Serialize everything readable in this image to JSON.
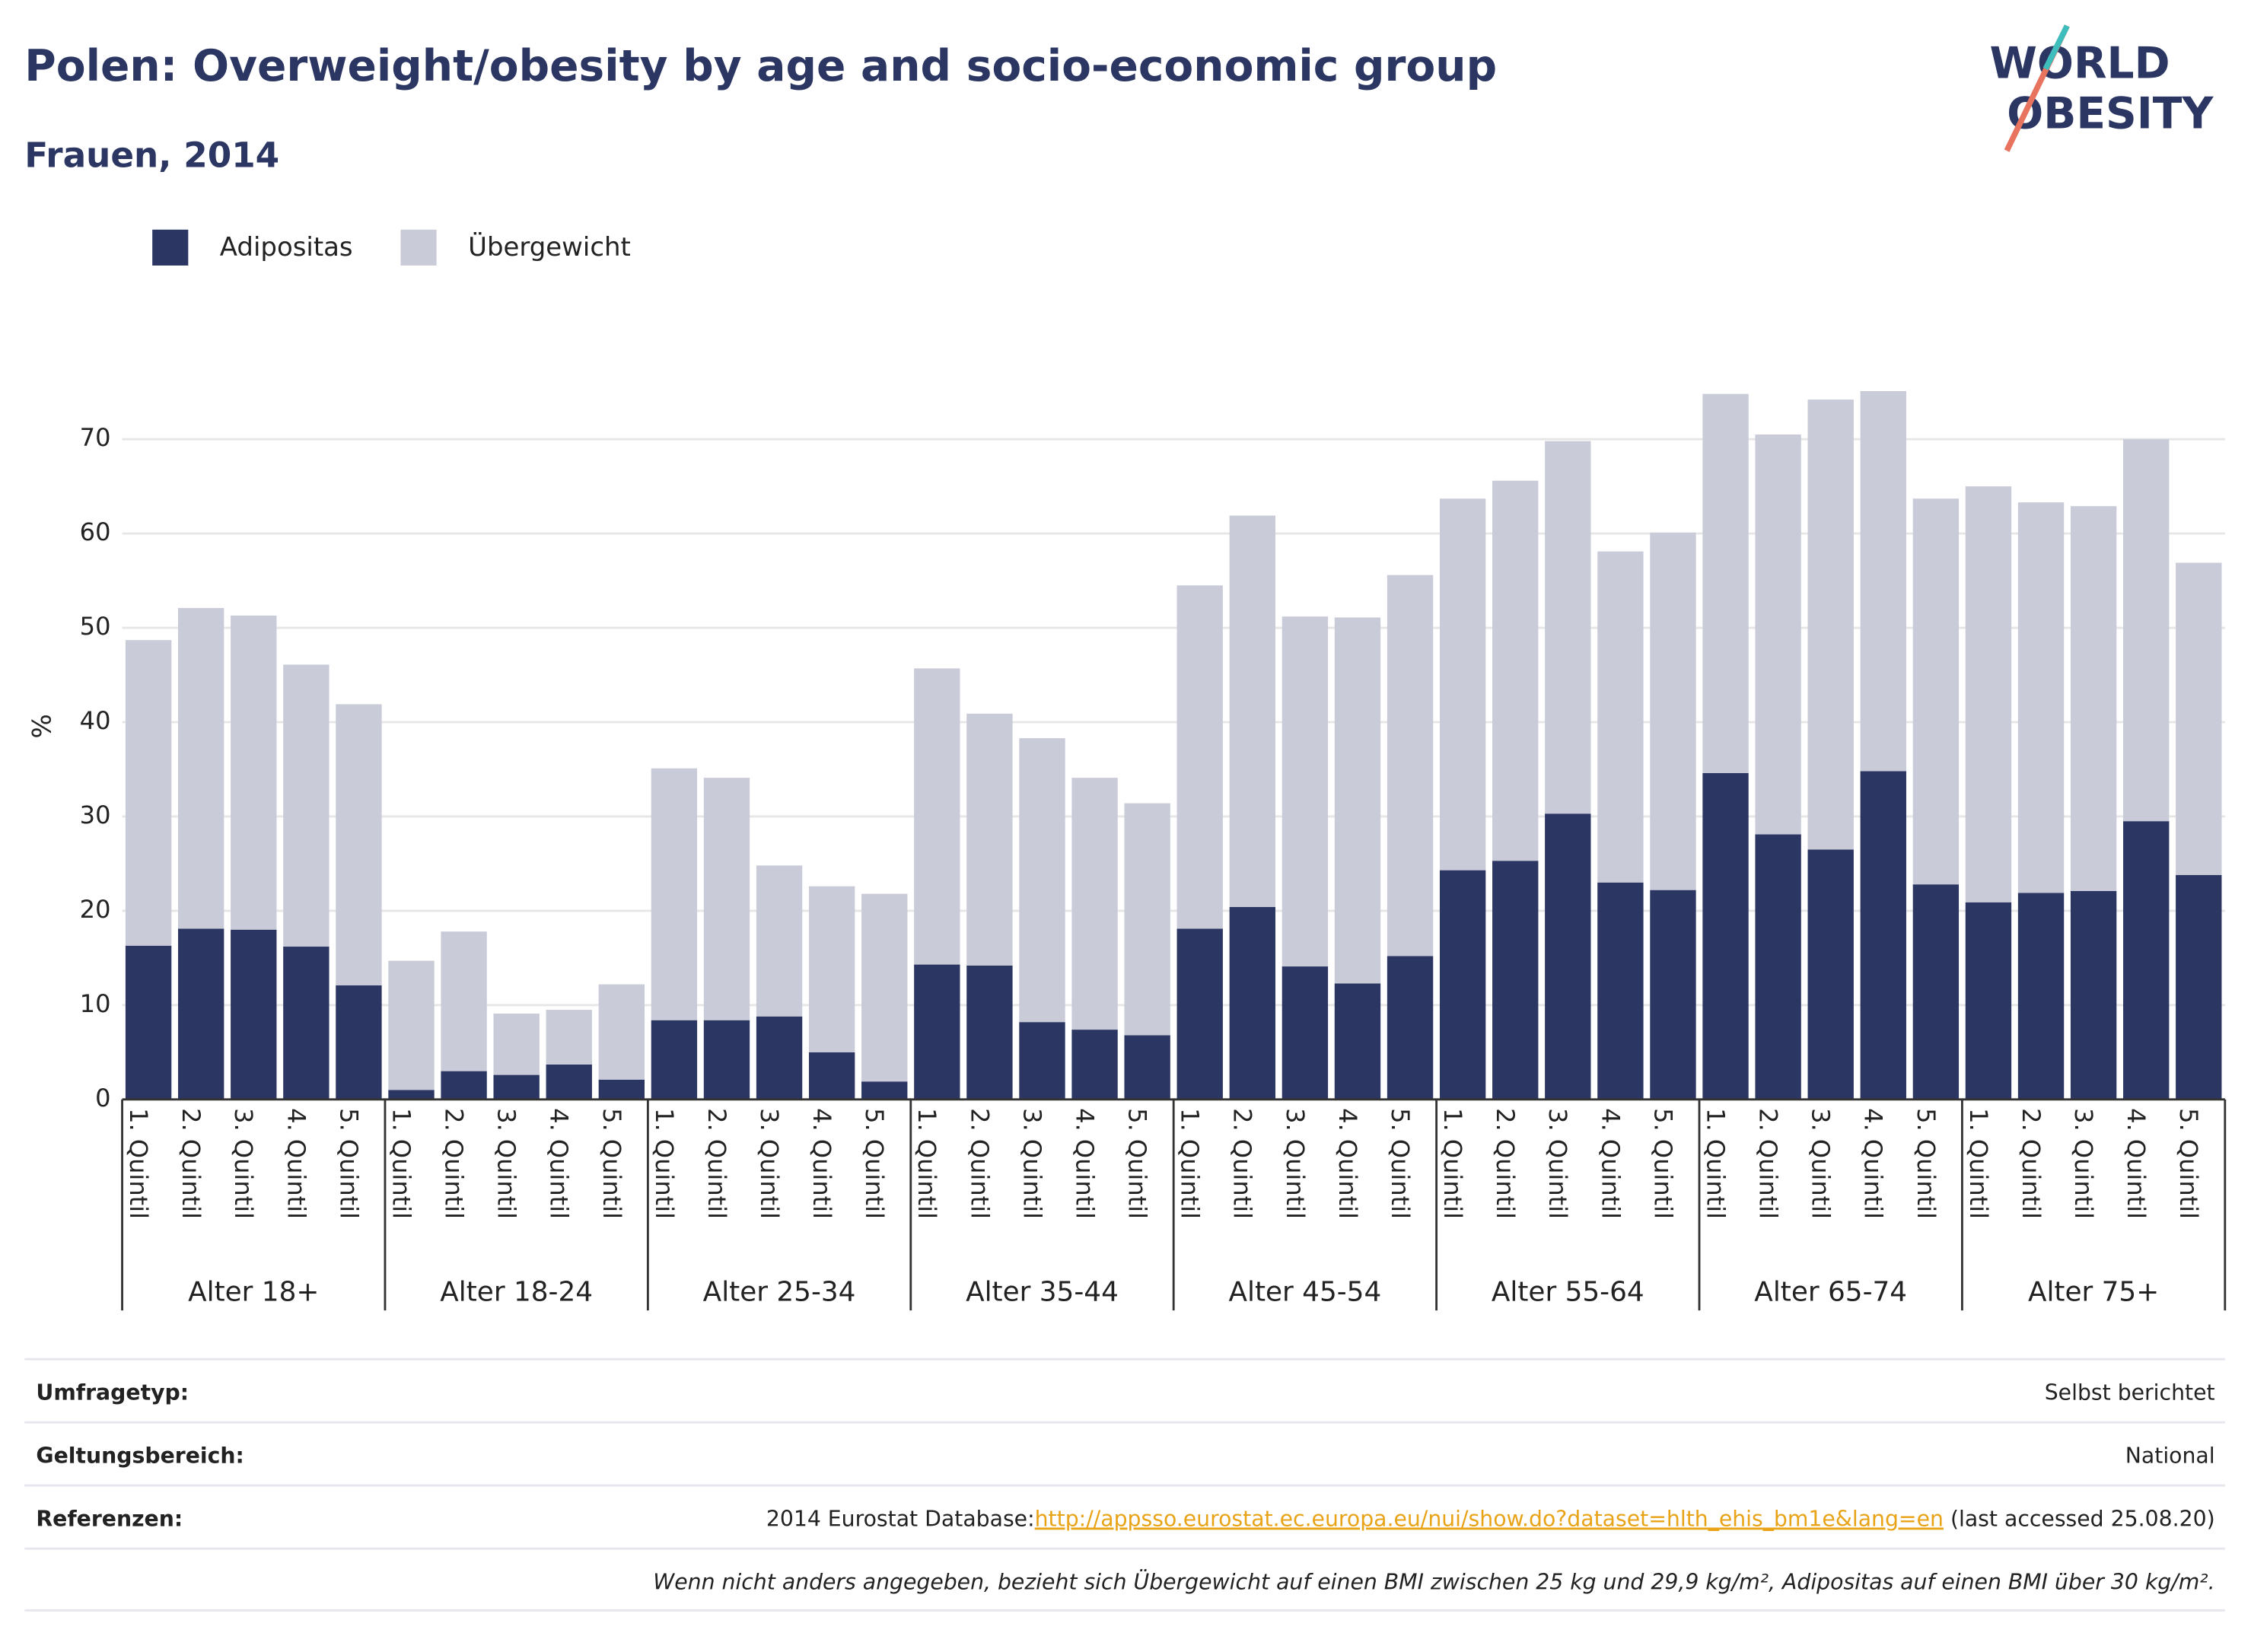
{
  "chart_data": {
    "type": "stacked-bar",
    "title": "Polen: Overweight/obesity by age and socio-economic group",
    "subtitle": "Frauen, 2014",
    "ylabel": "%",
    "logo": {
      "line1": "WORLD",
      "line2": "OBESITY"
    },
    "groups": [
      "Alter 18+",
      "Alter 18-24",
      "Alter 25-34",
      "Alter 35-44",
      "Alter 45-54",
      "Alter 55-64",
      "Alter 65-74",
      "Alter 75+"
    ],
    "categories": [
      "1. Quintil",
      "2. Quintil",
      "3. Quintil",
      "4. Quintil",
      "5. Quintil",
      "1. Quintil",
      "2. Quintil",
      "3. Quintil",
      "4. Quintil",
      "5. Quintil",
      "1. Quintil",
      "2. Quintil",
      "3. Quintil",
      "4. Quintil",
      "5. Quintil",
      "1. Quintil",
      "2. Quintil",
      "3. Quintil",
      "4. Quintil",
      "5. Quintil",
      "1. Quintil",
      "2. Quintil",
      "3. Quintil",
      "4. Quintil",
      "5. Quintil",
      "1. Quintil",
      "2. Quintil",
      "3. Quintil",
      "4. Quintil",
      "5. Quintil",
      "1. Quintil",
      "2. Quintil",
      "3. Quintil",
      "4. Quintil",
      "5. Quintil",
      "1. Quintil",
      "2. Quintil",
      "3. Quintil",
      "4. Quintil",
      "5. Quintil"
    ],
    "series": [
      {
        "name": "Adipositas",
        "color": "#2b3663",
        "values": [
          16.3,
          18.1,
          18.0,
          16.2,
          12.1,
          1.0,
          3.0,
          2.6,
          3.7,
          2.1,
          8.4,
          8.4,
          8.8,
          5.0,
          1.9,
          14.3,
          14.2,
          8.2,
          7.4,
          6.8,
          18.1,
          20.4,
          14.1,
          12.3,
          15.2,
          24.3,
          25.3,
          30.3,
          23.0,
          22.2,
          34.6,
          28.1,
          26.5,
          34.8,
          22.8,
          20.9,
          21.9,
          22.1,
          29.5,
          23.8
        ]
      },
      {
        "name": "Übergewicht",
        "color": "#c9cbd8",
        "values": [
          32.4,
          34.0,
          33.3,
          29.9,
          29.8,
          13.7,
          14.8,
          6.5,
          5.8,
          10.1,
          26.7,
          25.7,
          16.0,
          17.6,
          19.9,
          31.4,
          26.7,
          30.1,
          26.7,
          24.6,
          36.4,
          41.5,
          37.1,
          38.8,
          40.4,
          39.4,
          40.3,
          39.5,
          35.1,
          37.9,
          40.2,
          42.4,
          47.7,
          40.3,
          40.9,
          44.1,
          41.4,
          40.8,
          40.5,
          33.1
        ]
      }
    ],
    "ylim": [
      0,
      80
    ],
    "yticks": [
      0,
      10,
      20,
      30,
      40,
      50,
      60,
      70
    ],
    "grid": true,
    "legend": "top-left"
  },
  "footer": {
    "rows": [
      {
        "label": "Umfragetyp:",
        "value": "Selbst berichtet"
      },
      {
        "label": "Geltungsbereich:",
        "value": "National"
      },
      {
        "label": "Referenzen:",
        "prefix": "2014 Eurostat Database:",
        "link": "http://appsso.eurostat.ec.europa.eu/nui/show.do?dataset=hlth_ehis_bm1e&lang=en",
        "suffix": " (last accessed 25.08.20)"
      }
    ],
    "note": "Wenn nicht anders angegeben, bezieht sich Übergewicht auf einen BMI zwischen 25 kg und 29,9 kg/m², Adipositas auf einen BMI über 30 kg/m²."
  }
}
